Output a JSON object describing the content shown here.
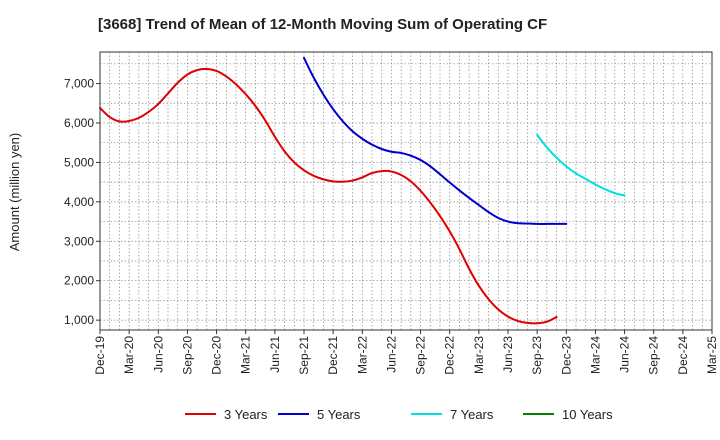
{
  "chart_data": {
    "type": "line",
    "title": "[3668]  Trend of Mean of 12-Month Moving Sum of Operating CF",
    "xlabel": "",
    "ylabel": "Amount (million yen)",
    "ylim": [
      750,
      7800
    ],
    "yticks": [
      1000,
      2000,
      3000,
      4000,
      5000,
      6000,
      7000
    ],
    "ytick_labels": [
      "1,000",
      "2,000",
      "3,000",
      "4,000",
      "5,000",
      "6,000",
      "7,000"
    ],
    "x_labels": [
      "Dec-19",
      "Mar-20",
      "Jun-20",
      "Sep-20",
      "Dec-20",
      "Mar-21",
      "Jun-21",
      "Sep-21",
      "Dec-21",
      "Mar-22",
      "Jun-22",
      "Sep-22",
      "Dec-22",
      "Mar-23",
      "Jun-23",
      "Sep-23",
      "Dec-23",
      "Mar-24",
      "Jun-24",
      "Sep-24",
      "Dec-24",
      "Mar-25"
    ],
    "grid": true,
    "legend_position": "bottom",
    "series": [
      {
        "name": "3 Years",
        "color": "#e00000",
        "start_index": 0,
        "values": [
          6380,
          6150,
          6040,
          6050,
          6130,
          6280,
          6480,
          6750,
          7020,
          7230,
          7340,
          7370,
          7320,
          7180,
          6980,
          6730,
          6430,
          6070,
          5650,
          5280,
          5000,
          4800,
          4660,
          4570,
          4520,
          4510,
          4540,
          4620,
          4730,
          4780,
          4770,
          4680,
          4520,
          4280,
          3980,
          3640,
          3250,
          2800,
          2300,
          1870,
          1530,
          1270,
          1090,
          980,
          930,
          920,
          960,
          1080
        ]
      },
      {
        "name": "5 Years",
        "color": "#0000cc",
        "start_index": 21,
        "values": [
          7650,
          7150,
          6720,
          6350,
          6040,
          5790,
          5600,
          5450,
          5340,
          5270,
          5240,
          5170,
          5060,
          4900,
          4700,
          4490,
          4290,
          4100,
          3920,
          3740,
          3590,
          3500,
          3460,
          3450,
          3440,
          3440,
          3440,
          3440
        ]
      },
      {
        "name": "7 Years",
        "color": "#00e0e0",
        "start_index": 45,
        "values": [
          5700,
          5380,
          5120,
          4900,
          4720,
          4580,
          4440,
          4320,
          4220,
          4160
        ]
      },
      {
        "name": "10 Years",
        "color": "#008000",
        "start_index": 0,
        "values": []
      }
    ]
  }
}
